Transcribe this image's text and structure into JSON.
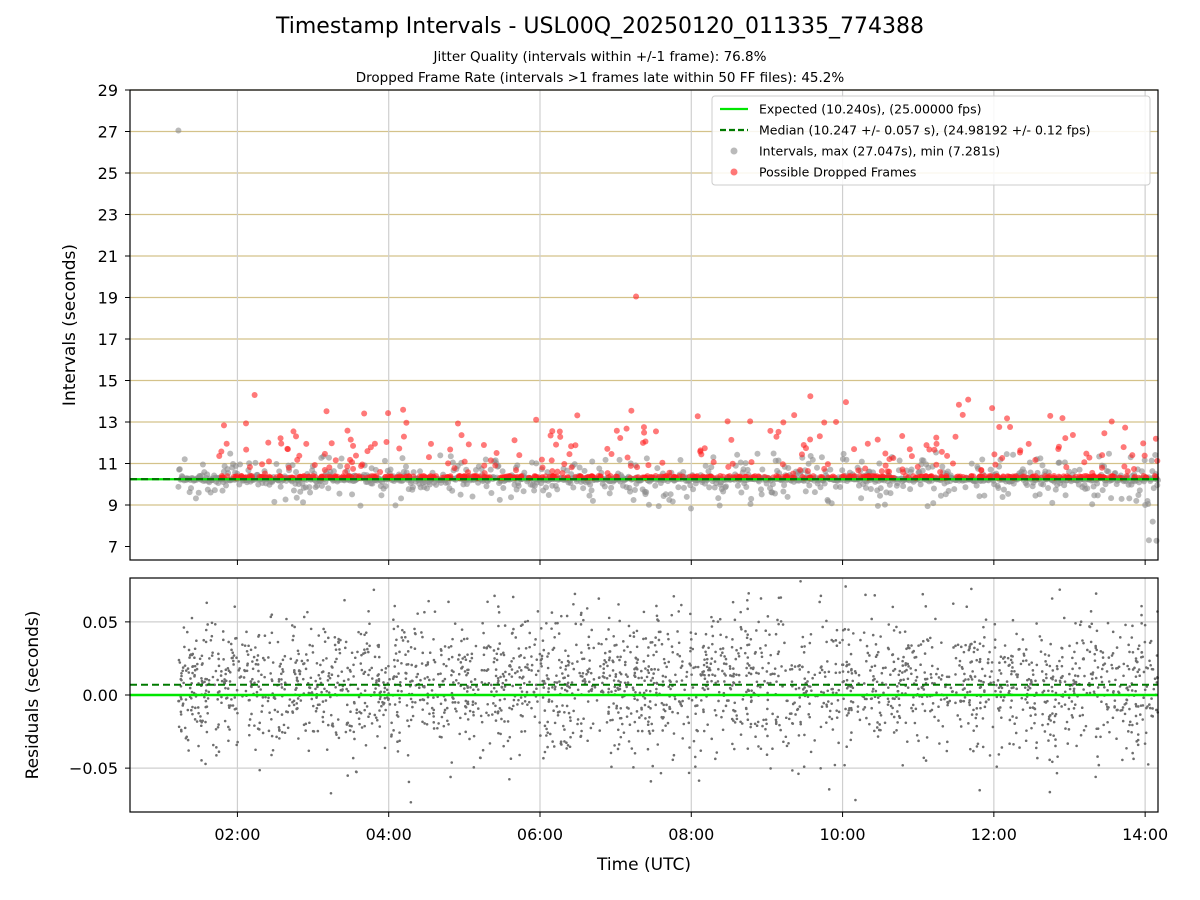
{
  "chart_data": [
    {
      "type": "scatter",
      "title": "Timestamp Intervals - USL00Q_20250120_011335_774388",
      "subtitle_lines": [
        "Jitter Quality (intervals within +/-1 frame): 76.8%",
        "Dropped Frame Rate (intervals >1 frames late within 50 FF files): 45.2%"
      ],
      "xlabel": "",
      "ylabel": "Intervals (seconds)",
      "xlim_hours": [
        0.58,
        14.17
      ],
      "ylim": [
        6.35,
        29.0
      ],
      "x_ticks": [
        2,
        4,
        6,
        8,
        10,
        12,
        14
      ],
      "x_tick_labels": [
        "02:00",
        "04:00",
        "06:00",
        "08:00",
        "10:00",
        "12:00",
        "14:00"
      ],
      "y_ticks": [
        7,
        9,
        11,
        13,
        15,
        17,
        19,
        21,
        23,
        25,
        27,
        29
      ],
      "y_tick_labels": [
        "7",
        "9",
        "11",
        "13",
        "15",
        "17",
        "19",
        "21",
        "23",
        "25",
        "27",
        "29"
      ],
      "x_grid": true,
      "horizontal_lines": [
        9,
        11,
        13,
        15,
        17,
        19,
        21,
        23,
        25,
        27,
        29
      ],
      "expected_interval": 10.24,
      "median_interval": 10.247,
      "legend_position": "top-right",
      "legend": [
        {
          "label": "Expected (10.240s), (25.00000 fps)",
          "kind": "line",
          "color": "#00e600"
        },
        {
          "label": "Median (10.247 +/- 0.057 s), (24.98192 +/- 0.12 fps)",
          "kind": "dashed-line",
          "color": "#007a00"
        },
        {
          "label": "Intervals, max (27.047s), min (7.281s)",
          "kind": "marker",
          "color": "#8c8c8c"
        },
        {
          "label": "Possible Dropped Frames",
          "kind": "marker",
          "color": "#ff2020"
        }
      ],
      "intervals_max": 27.047,
      "intervals_min": 7.281,
      "data_time_range_hours": [
        1.22,
        14.17
      ],
      "outliers": [
        {
          "x": 1.22,
          "y": 27.05
        },
        {
          "x": 7.27,
          "y": 19.05
        }
      ],
      "colors": {
        "expected": "#00e600",
        "median": "#007a00",
        "intervals": "#8c8c8c",
        "dropped": "#ff2020",
        "hline": "#d4c28a"
      }
    },
    {
      "type": "scatter",
      "xlabel": "Time (UTC)",
      "ylabel": "Residuals (seconds)",
      "xlim_hours": [
        0.58,
        14.17
      ],
      "ylim": [
        -0.08,
        0.08
      ],
      "x_ticks": [
        2,
        4,
        6,
        8,
        10,
        12,
        14
      ],
      "x_tick_labels": [
        "02:00",
        "04:00",
        "06:00",
        "08:00",
        "10:00",
        "12:00",
        "14:00"
      ],
      "y_ticks": [
        -0.05,
        0.0,
        0.05
      ],
      "y_tick_labels": [
        "−0.05",
        "0.00",
        "0.05"
      ],
      "grid": true,
      "zero_line": 0.0,
      "median_residual": 0.007,
      "residual_spread_sd": 0.025,
      "colors": {
        "points": "#6e6e6e",
        "zero": "#00e600",
        "median": "#007a00"
      }
    }
  ]
}
